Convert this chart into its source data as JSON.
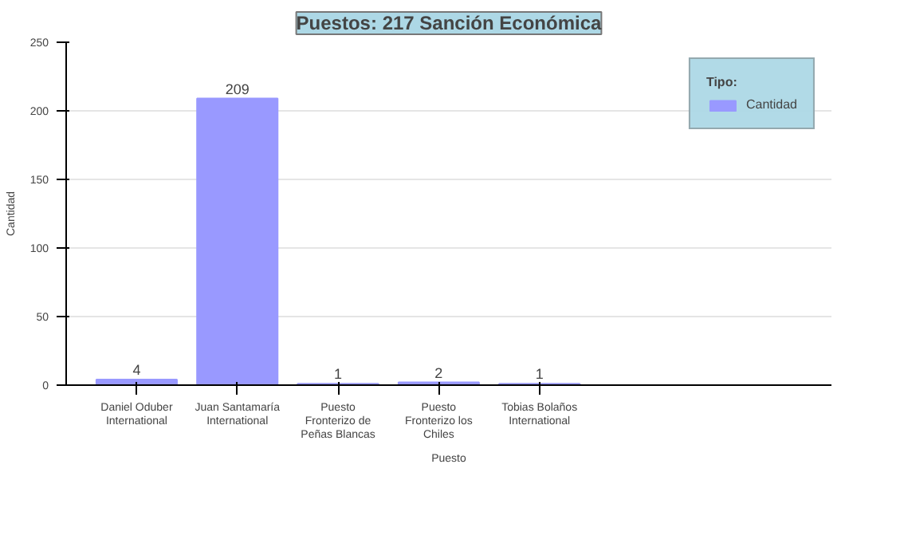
{
  "chart_data": {
    "type": "bar",
    "title": "Puestos: 217 Sanción Económica",
    "xlabel": "Puesto",
    "ylabel": "Cantidad",
    "legend_title": "Tipo:",
    "categories": [
      "Daniel Oduber International",
      "Juan Santamaría International",
      "Puesto Fronterizo de Peñas Blancas",
      "Puesto Fronterizo los Chiles",
      "Tobias Bolaños International"
    ],
    "series": [
      {
        "name": "Cantidad",
        "color": "#9999ff",
        "values": [
          4,
          209,
          1,
          2,
          1
        ]
      }
    ],
    "ylim": [
      0,
      250
    ],
    "yticks": [
      0,
      50,
      100,
      150,
      200,
      250
    ],
    "grid": "y",
    "legend": "top right",
    "data_labels": true
  }
}
